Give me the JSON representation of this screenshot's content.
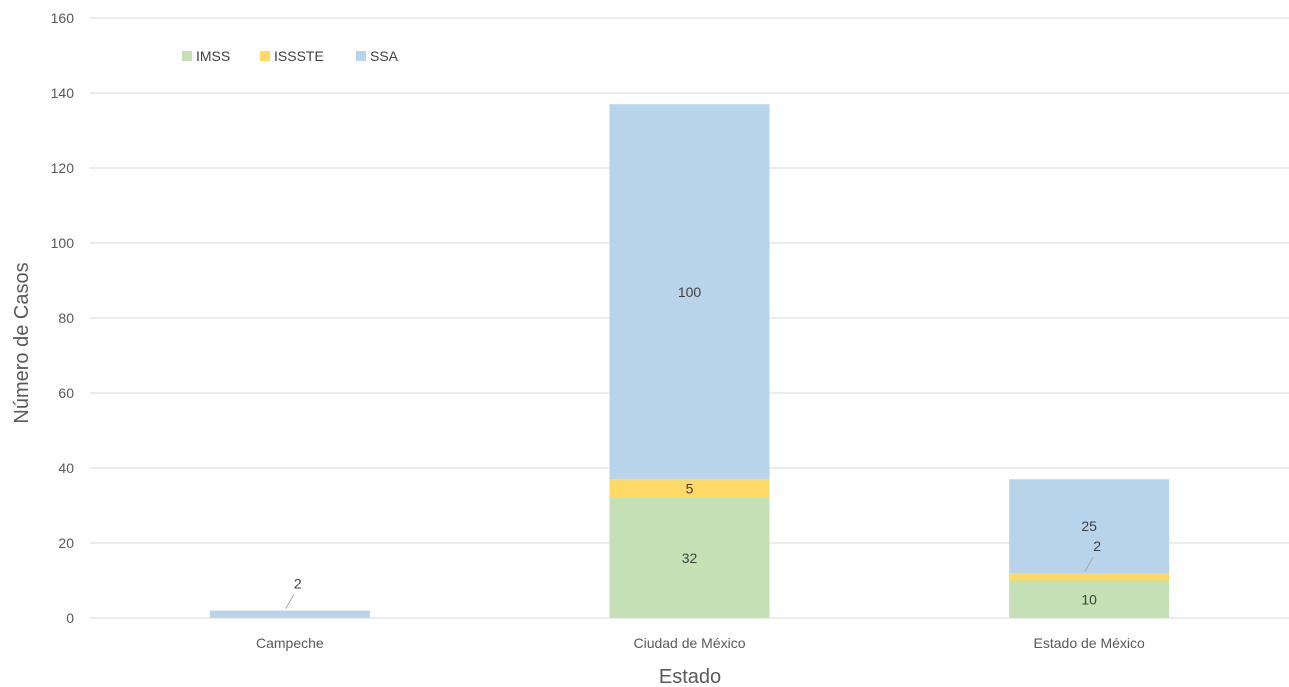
{
  "chart_data": {
    "type": "bar",
    "stacked": true,
    "title": "",
    "xlabel": "Estado",
    "ylabel": "Número de Casos",
    "categories": [
      "Campeche",
      "Ciudad de México",
      "Estado de México"
    ],
    "series": [
      {
        "name": "IMSS",
        "values": [
          0,
          32,
          10
        ],
        "color": "#c5e0b4"
      },
      {
        "name": "ISSSTE",
        "values": [
          0,
          5,
          2
        ],
        "color": "#ffd966"
      },
      {
        "name": "SSA",
        "values": [
          2,
          100,
          25
        ],
        "color": "#b8d4eb"
      }
    ],
    "ylim": [
      0,
      160
    ],
    "yticks": [
      0,
      20,
      40,
      60,
      80,
      100,
      120,
      140,
      160
    ],
    "grid": true,
    "legend_position": "top-left"
  }
}
